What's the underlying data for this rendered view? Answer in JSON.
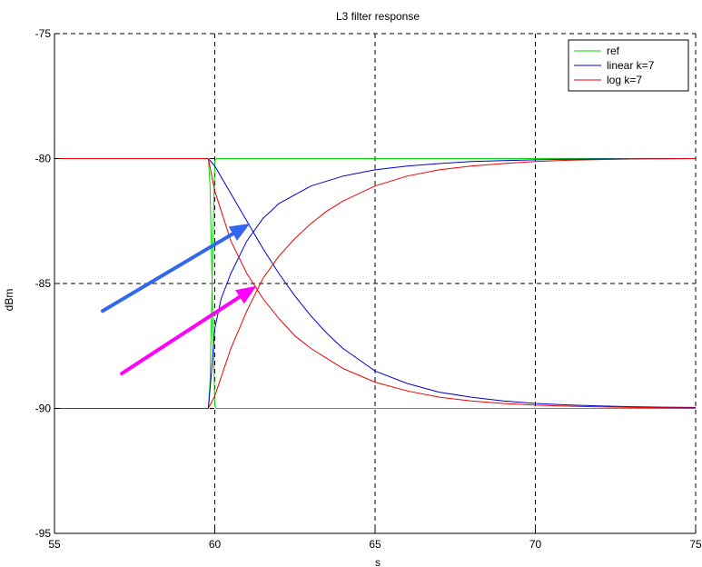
{
  "chart_data": {
    "type": "line",
    "title": "L3 filter response",
    "xlabel": "s",
    "ylabel": "dBm",
    "xlim": [
      55,
      75
    ],
    "ylim": [
      -95,
      -75
    ],
    "xticks": [
      55,
      60,
      65,
      70,
      75
    ],
    "yticks": [
      -95,
      -90,
      -85,
      -80,
      -75
    ],
    "xtick_labels": [
      "55",
      "60",
      "65",
      "70",
      "75"
    ],
    "ytick_labels": [
      "-95",
      "-90",
      "-85",
      "-80",
      "-75"
    ],
    "grid": true,
    "legend_position": "top-right",
    "series": [
      {
        "name": "ref",
        "color": "#00dd00",
        "lines": [
          {
            "x": [
              55,
              59.8,
              59.85,
              60.0,
              60.05,
              75
            ],
            "y": [
              -80,
              -80,
              -81,
              -89.9,
              -90,
              -90
            ]
          },
          {
            "x": [
              55,
              59.8,
              59.85,
              60.0,
              60.05,
              75
            ],
            "y": [
              -90,
              -90,
              -89,
              -80.1,
              -80,
              -80
            ]
          }
        ]
      },
      {
        "name": "linear k=7",
        "color": "#0000cc",
        "lines": [
          {
            "x": [
              55,
              59.8,
              60,
              60.5,
              61,
              61.5,
              62,
              62.5,
              63,
              63.5,
              64,
              65,
              66,
              67,
              68,
              69,
              70,
              71,
              72,
              73,
              74,
              75
            ],
            "y": [
              -80,
              -80,
              -80.3,
              -81.4,
              -82.5,
              -83.6,
              -84.6,
              -85.5,
              -86.3,
              -87.0,
              -87.6,
              -88.5,
              -89.0,
              -89.35,
              -89.55,
              -89.7,
              -89.8,
              -89.86,
              -89.9,
              -89.93,
              -89.95,
              -89.96
            ]
          },
          {
            "x": [
              55,
              59.8,
              59.9,
              60,
              60.2,
              60.5,
              61,
              61.5,
              62,
              63,
              64,
              65,
              66,
              67,
              68,
              69,
              70,
              71,
              72,
              73,
              75
            ],
            "y": [
              -90,
              -90,
              -88.5,
              -86.8,
              -85.6,
              -84.6,
              -83.3,
              -82.4,
              -81.8,
              -81.1,
              -80.7,
              -80.45,
              -80.3,
              -80.2,
              -80.12,
              -80.08,
              -80.05,
              -80.03,
              -80.02,
              -80.01,
              -80.0
            ]
          }
        ]
      },
      {
        "name": "log k=7",
        "color": "#ee0000",
        "lines": [
          {
            "x": [
              55,
              59.8,
              60,
              60.5,
              61,
              61.5,
              62,
              62.5,
              63,
              64,
              65,
              66,
              67,
              68,
              69,
              70,
              71,
              72,
              73,
              74,
              75
            ],
            "y": [
              -80,
              -80,
              -81.3,
              -83.3,
              -84.6,
              -85.6,
              -86.4,
              -87.1,
              -87.6,
              -88.4,
              -88.95,
              -89.3,
              -89.55,
              -89.7,
              -89.8,
              -89.87,
              -89.91,
              -89.94,
              -89.96,
              -89.97,
              -89.98
            ]
          },
          {
            "x": [
              55,
              59.8,
              60,
              60.5,
              61,
              61.5,
              62,
              62.5,
              63,
              63.5,
              64,
              65,
              66,
              67,
              68,
              69,
              70,
              71,
              72,
              73,
              75
            ],
            "y": [
              -90,
              -90,
              -89.5,
              -87.6,
              -86.1,
              -84.8,
              -83.9,
              -83.2,
              -82.6,
              -82.1,
              -81.7,
              -81.1,
              -80.7,
              -80.45,
              -80.3,
              -80.2,
              -80.12,
              -80.07,
              -80.04,
              -80.02,
              -80.0
            ]
          }
        ]
      }
    ],
    "annotations": [
      {
        "type": "arrow",
        "color": "#3366ee",
        "from": [
          56.5,
          -86.1
        ],
        "to": [
          61.1,
          -82.6
        ]
      },
      {
        "type": "arrow",
        "color": "#ff00ff",
        "from": [
          57.1,
          -88.6
        ],
        "to": [
          61.3,
          -85.1
        ]
      }
    ]
  }
}
